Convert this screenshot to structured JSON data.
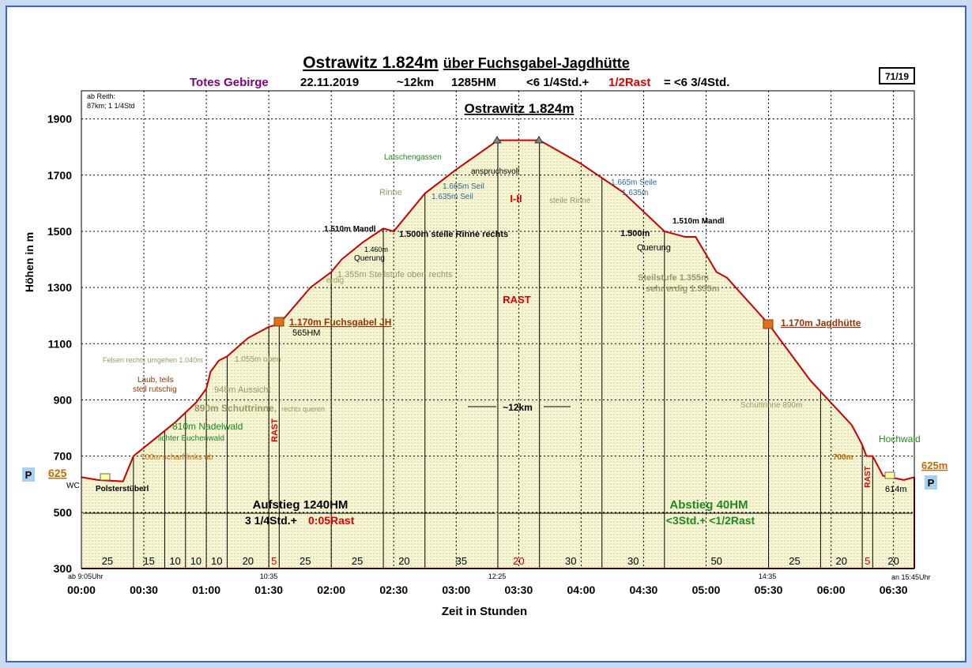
{
  "chart_data": {
    "type": "area",
    "title": [
      "Ostrawitz 1.824m",
      "über Fuchsgabel-Jagdhütte"
    ],
    "subtitle": [
      "Totes Gebirge",
      "22.11.2019",
      "~12km",
      "1285HM",
      "<6 1/4Std.+",
      "1/2Rast",
      "= <6 3/4Std."
    ],
    "x_label": "Zeit in Stunden",
    "y_label": "Höhen in m",
    "x": [
      0,
      8,
      20,
      25,
      35,
      45,
      55,
      60,
      62,
      66,
      70,
      80,
      90,
      95,
      110,
      120,
      125,
      135,
      145,
      150,
      165,
      180,
      200,
      220,
      240,
      260,
      280,
      290,
      295,
      305,
      310,
      330,
      350,
      370,
      375,
      377,
      380,
      385,
      395,
      400
    ],
    "values": [
      625,
      615,
      610,
      700,
      760,
      820,
      890,
      940,
      1000,
      1040,
      1055,
      1120,
      1160,
      1170,
      1300,
      1355,
      1400,
      1460,
      1510,
      1500,
      1635,
      1720,
      1824,
      1824,
      1740,
      1640,
      1500,
      1480,
      1480,
      1355,
      1335,
      1170,
      970,
      810,
      740,
      700,
      700,
      630,
      615,
      625
    ],
    "color": "#cc0000",
    "fill": "#f6f6d2",
    "xlim": [
      0,
      400
    ],
    "ylim": [
      300,
      2000
    ],
    "xticks": [
      {
        "value": 0,
        "label": "00:00"
      },
      {
        "value": 30,
        "label": "00:30"
      },
      {
        "value": 60,
        "label": "01:00"
      },
      {
        "value": 90,
        "label": "01:30"
      },
      {
        "value": 120,
        "label": "02:00"
      },
      {
        "value": 150,
        "label": "02:30"
      },
      {
        "value": 180,
        "label": "03:00"
      },
      {
        "value": 210,
        "label": "03:30"
      },
      {
        "value": 240,
        "label": "04:00"
      },
      {
        "value": 270,
        "label": "04:30"
      },
      {
        "value": 300,
        "label": "05:00"
      },
      {
        "value": 330,
        "label": "05:30"
      },
      {
        "value": 360,
        "label": "06:00"
      },
      {
        "value": 390,
        "label": "06:30"
      }
    ],
    "yticks": [
      300,
      500,
      700,
      900,
      1100,
      1300,
      1500,
      1700,
      1900
    ],
    "grid": true,
    "segments": [
      25,
      15,
      10,
      10,
      10,
      20,
      5,
      25,
      25,
      20,
      35,
      20,
      30,
      30,
      50,
      25,
      20,
      5,
      20
    ],
    "rest_segments": [
      6,
      11,
      17
    ],
    "rest_color": "#cc0000"
  },
  "annotations": [
    "ab Reith:",
    "87km; 1 1/4Std",
    "71/19",
    "Ostrawitz 1.824m",
    "Latschengassen",
    "anspruchsvoll",
    "Rinne",
    "1.665m Seil",
    "1.635m Seil",
    "I-II",
    "steile Rinne",
    "1.665m Seile",
    "1.635m",
    "1.510m Mandl",
    "1.460m",
    "Querung",
    "1.500m steile Rinne rechts",
    "1.355m Steilstufe oben rechts",
    "erdig",
    "RAST",
    "1.170m Fuchsgabel  JH",
    "565HM",
    "Felsen rechts umgehen 1.040m",
    "1.055m oben",
    "Laub, teils",
    "steil rutschig",
    "948m  Aussicht",
    "890m Schuttrinne,",
    "rechts queren",
    "810m Nadelwald",
    "lichter Buchenwald",
    "700m scharf links ab",
    "RAST",
    "WC",
    "Polsterstüberl",
    "625",
    "P",
    "~12km",
    "Aufstieg 1240HM",
    "3 1/4Std.+",
    "0:05Rast",
    "Abstieg 40HM",
    "<3Std.+ <1/2Rast",
    "1.500m",
    "Querung",
    "1.510m Mandl",
    "Steilstufe 1.355m",
    "sehr erdig 1.335m",
    "1.170m Jagdhütte",
    "Schuttrinne 890m",
    "700m",
    "RAST",
    "Hochwald",
    "614m",
    "625m",
    "P",
    "ab 9:05Uhr",
    "10:35",
    "12:25",
    "14:35",
    "an 15:45Uhr"
  ]
}
